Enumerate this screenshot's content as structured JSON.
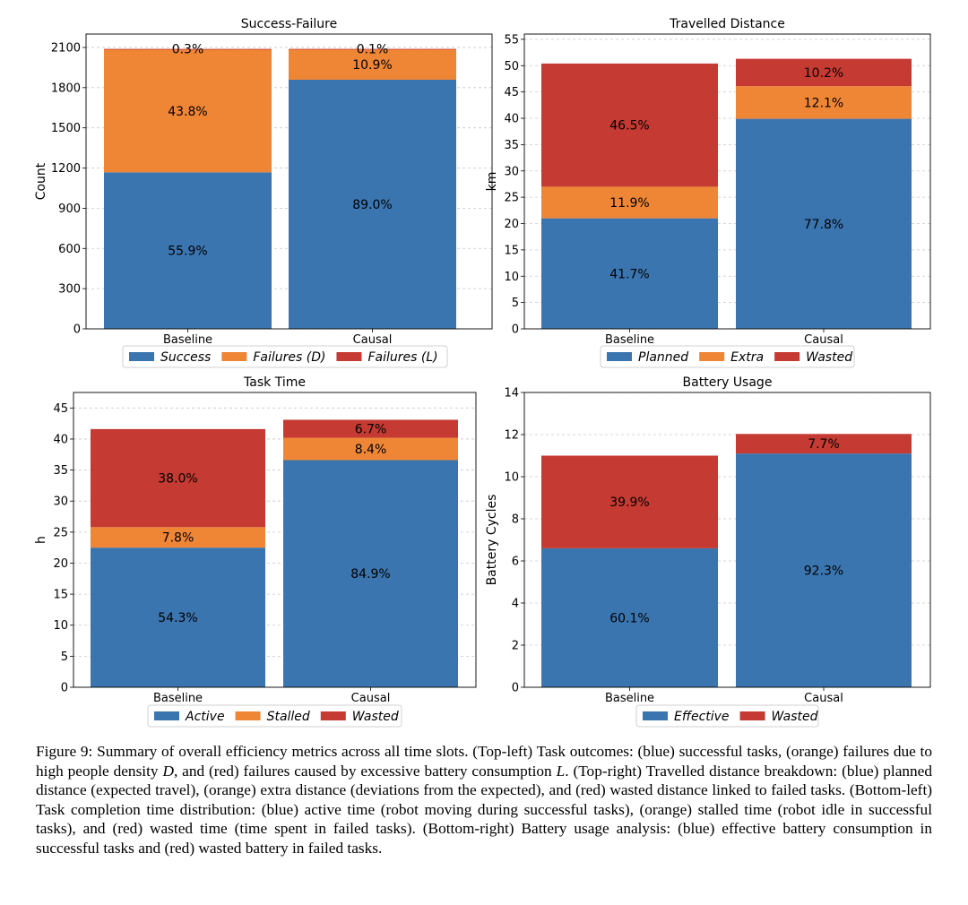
{
  "colors": {
    "blue": "#3b75af",
    "orange": "#ef8636",
    "red": "#c53a32",
    "grid": "#b0b0b0"
  },
  "chart_data": [
    {
      "type": "bar",
      "stacked": true,
      "title": "Success-Failure",
      "xlabel": "",
      "ylabel": "Count",
      "ylim": [
        0,
        2200
      ],
      "yticks": [
        0,
        300,
        600,
        900,
        1200,
        1500,
        1800,
        2100
      ],
      "ytick_labels": [
        "0",
        "300",
        "600",
        "900",
        "1200",
        "1500",
        "1800",
        "2100"
      ],
      "categories": [
        "Baseline",
        "Causal"
      ],
      "grid": true,
      "legend_position": "bottom",
      "series": [
        {
          "name": "Success",
          "legend_prefix": "",
          "legend_var": "",
          "legend_suffix": "",
          "color": "blue",
          "values": [
            1168,
            1859
          ],
          "labels": [
            "55.9%",
            "89.0%"
          ]
        },
        {
          "name": "Failures",
          "legend_prefix": "Failures (",
          "legend_var": "D",
          "legend_suffix": ")",
          "color": "orange",
          "values": [
            915,
            228
          ],
          "labels": [
            "43.8%",
            "10.9%"
          ]
        },
        {
          "name": "Failures",
          "legend_prefix": "Failures (",
          "legend_var": "L",
          "legend_suffix": ")",
          "color": "red",
          "values": [
            6,
            2
          ],
          "labels": [
            "0.3%",
            "0.1%"
          ]
        }
      ]
    },
    {
      "type": "bar",
      "stacked": true,
      "title": "Travelled Distance",
      "xlabel": "",
      "ylabel": "km",
      "ylim": [
        0,
        56
      ],
      "yticks": [
        0,
        5,
        10,
        15,
        20,
        25,
        30,
        35,
        40,
        45,
        50,
        55
      ],
      "ytick_labels": [
        "0",
        "5",
        "10",
        "15",
        "20",
        "25",
        "30",
        "35",
        "40",
        "45",
        "50",
        "55"
      ],
      "categories": [
        "Baseline",
        "Causal"
      ],
      "grid": true,
      "legend_position": "bottom",
      "series": [
        {
          "name": "Planned",
          "color": "blue",
          "values": [
            21.0,
            39.9
          ],
          "labels": [
            "41.7%",
            "77.8%"
          ]
        },
        {
          "name": "Extra",
          "color": "orange",
          "values": [
            6.0,
            6.2
          ],
          "labels": [
            "11.9%",
            "12.1%"
          ]
        },
        {
          "name": "Wasted",
          "color": "red",
          "values": [
            23.4,
            5.2
          ],
          "labels": [
            "46.5%",
            "10.2%"
          ]
        }
      ]
    },
    {
      "type": "bar",
      "stacked": true,
      "title": "Task Time",
      "xlabel": "",
      "ylabel": "h",
      "ylim": [
        0,
        47.5
      ],
      "yticks": [
        0,
        5,
        10,
        15,
        20,
        25,
        30,
        35,
        40,
        45
      ],
      "ytick_labels": [
        "0",
        "5",
        "10",
        "15",
        "20",
        "25",
        "30",
        "35",
        "40",
        "45"
      ],
      "categories": [
        "Baseline",
        "Causal"
      ],
      "grid": true,
      "legend_position": "bottom",
      "series": [
        {
          "name": "Active",
          "color": "blue",
          "values": [
            22.5,
            36.6
          ],
          "labels": [
            "54.3%",
            "84.9%"
          ]
        },
        {
          "name": "Stalled",
          "color": "orange",
          "values": [
            3.3,
            3.6
          ],
          "labels": [
            "7.8%",
            "8.4%"
          ]
        },
        {
          "name": "Wasted",
          "color": "red",
          "values": [
            15.8,
            2.9
          ],
          "labels": [
            "38.0%",
            "6.7%"
          ]
        }
      ]
    },
    {
      "type": "bar",
      "stacked": true,
      "title": "Battery Usage",
      "xlabel": "",
      "ylabel": "Battery Cycles",
      "ylim": [
        0,
        14
      ],
      "yticks": [
        0,
        2,
        4,
        6,
        8,
        10,
        12,
        14
      ],
      "ytick_labels": [
        "0",
        "2",
        "4",
        "6",
        "8",
        "10",
        "12",
        "14"
      ],
      "categories": [
        "Baseline",
        "Causal"
      ],
      "grid": true,
      "legend_position": "bottom",
      "series": [
        {
          "name": "Effective",
          "color": "blue",
          "values": [
            6.6,
            11.1
          ],
          "labels": [
            "60.1%",
            "92.3%"
          ]
        },
        {
          "name": "Wasted",
          "color": "red",
          "values": [
            4.4,
            0.93
          ],
          "labels": [
            "39.9%",
            "7.7%"
          ]
        }
      ]
    }
  ],
  "caption": {
    "figure_label": "Figure 9:",
    "text_1": " Summary of overall efficiency metrics across all time slots. (Top-left) Task outcomes: (blue) successful tasks, (orange) failures due to high people density ",
    "var_d": "D",
    "text_2": ", and (red) failures caused by excessive battery consumption ",
    "var_l": "L",
    "text_3": ". (Top-right) Travelled distance breakdown: (blue) planned distance (expected travel), (orange) extra distance (deviations from the expected), and (red) wasted distance linked to failed tasks. (Bottom-left) Task completion time distribution: (blue) active time (robot moving during successful tasks), (orange) stalled time (robot idle in successful tasks), and (red) wasted time (time spent in failed tasks). (Bottom-right) Battery usage analysis: (blue) effective battery consumption in successful tasks and (red) wasted battery in failed tasks."
  }
}
